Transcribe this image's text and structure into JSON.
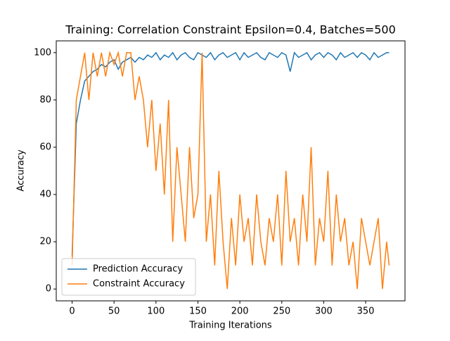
{
  "chart_data": {
    "type": "line",
    "title": "Training: Correlation Constraint Epsilon=0.4, Batches=500",
    "xlabel": "Training Iterations",
    "ylabel": "Accuracy",
    "x": [
      0,
      5,
      10,
      15,
      20,
      25,
      30,
      35,
      40,
      45,
      50,
      55,
      60,
      65,
      70,
      75,
      80,
      85,
      90,
      95,
      100,
      105,
      110,
      115,
      120,
      125,
      130,
      135,
      140,
      145,
      150,
      155,
      160,
      165,
      170,
      175,
      180,
      185,
      190,
      195,
      200,
      205,
      210,
      215,
      220,
      225,
      230,
      235,
      240,
      245,
      250,
      255,
      260,
      265,
      270,
      275,
      280,
      285,
      290,
      295,
      300,
      305,
      310,
      315,
      320,
      325,
      330,
      335,
      340,
      345,
      350,
      355,
      360,
      365,
      370,
      375,
      378
    ],
    "series": [
      {
        "name": "Prediction Accuracy",
        "color": "#1f77b4",
        "values": [
          14,
          70,
          80,
          88,
          90,
          92,
          93,
          95,
          94,
          96,
          97,
          93,
          96,
          97,
          98,
          96,
          98,
          97,
          99,
          98,
          100,
          97,
          99,
          98,
          100,
          97,
          99,
          100,
          98,
          97,
          100,
          99,
          98,
          100,
          97,
          99,
          100,
          98,
          99,
          100,
          97,
          100,
          98,
          99,
          100,
          98,
          97,
          100,
          99,
          98,
          100,
          99,
          92,
          100,
          98,
          99,
          100,
          97,
          99,
          100,
          98,
          100,
          99,
          97,
          100,
          98,
          99,
          100,
          98,
          100,
          99,
          97,
          100,
          98,
          99,
          100,
          100
        ]
      },
      {
        "name": "Constraint Accuracy",
        "color": "#ff7f0e",
        "values": [
          10,
          80,
          90,
          100,
          80,
          100,
          90,
          100,
          90,
          100,
          95,
          100,
          90,
          100,
          100,
          80,
          90,
          80,
          60,
          80,
          50,
          70,
          40,
          80,
          20,
          60,
          40,
          20,
          60,
          30,
          40,
          100,
          20,
          40,
          10,
          50,
          20,
          0,
          30,
          10,
          40,
          20,
          30,
          10,
          40,
          20,
          10,
          30,
          20,
          40,
          10,
          50,
          20,
          30,
          10,
          40,
          20,
          60,
          10,
          30,
          20,
          50,
          10,
          40,
          20,
          30,
          10,
          20,
          0,
          30,
          20,
          10,
          20,
          30,
          0,
          20,
          10
        ]
      }
    ],
    "xlim": [
      -18.9,
      396.9
    ],
    "ylim": [
      -5,
      105
    ],
    "xticks": [
      0,
      50,
      100,
      150,
      200,
      250,
      300,
      350
    ],
    "yticks": [
      0,
      20,
      40,
      60,
      80,
      100
    ],
    "grid": false,
    "legend": "lower left"
  }
}
